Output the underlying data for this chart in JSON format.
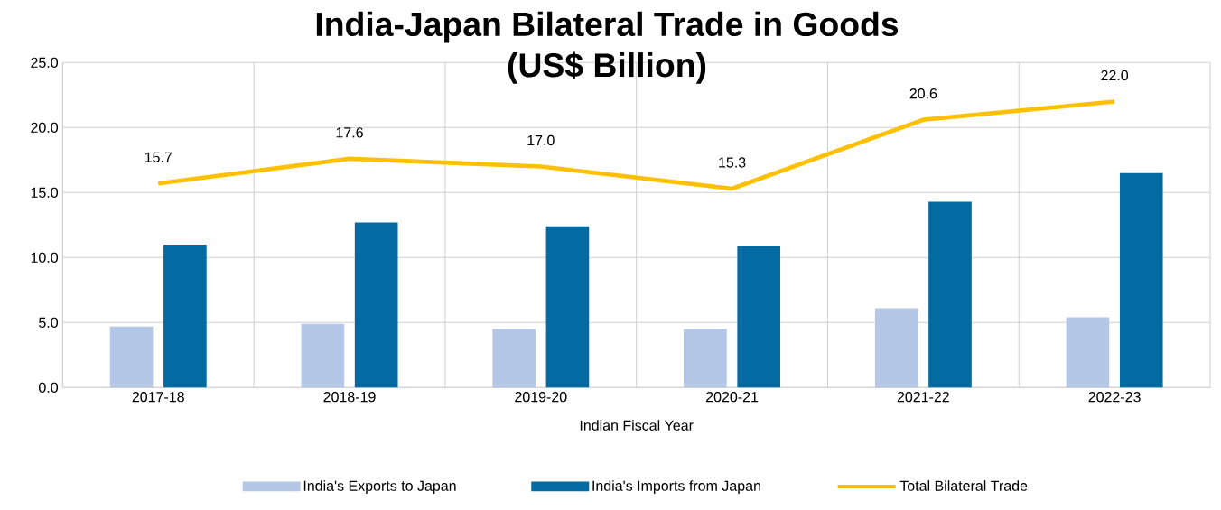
{
  "chart_data": {
    "type": "bar",
    "title": "India-Japan Bilateral Trade in Goods",
    "subtitle": "(US$ Billion)",
    "xlabel": "Indian Fiscal Year",
    "categories": [
      "2017-18",
      "2018-19",
      "2019-20",
      "2020-21",
      "2021-22",
      "2022-23"
    ],
    "series": [
      {
        "name": "India's Exports to Japan",
        "color": "#b4c7e7",
        "values": [
          4.7,
          4.9,
          4.5,
          4.5,
          6.1,
          5.4
        ]
      },
      {
        "name": "India's Imports from Japan",
        "color": "#036ba2",
        "values": [
          11.0,
          12.7,
          12.4,
          10.9,
          14.3,
          16.5
        ]
      },
      {
        "name": "Total Bilateral Trade",
        "type": "line",
        "color": "#ffc000",
        "values": [
          15.7,
          17.6,
          17.0,
          15.3,
          20.6,
          22.0
        ],
        "value_labels": [
          "15.7",
          "17.6",
          "17.0",
          "15.3",
          "20.6",
          "22.0"
        ]
      }
    ],
    "ylim": [
      0,
      25
    ],
    "yticks": [
      {
        "value": 0,
        "label": "0.0"
      },
      {
        "value": 5,
        "label": "5.0"
      },
      {
        "value": 10,
        "label": "10.0"
      },
      {
        "value": 15,
        "label": "15.0"
      },
      {
        "value": 20,
        "label": "20.0"
      },
      {
        "value": 25,
        "label": "25.0"
      }
    ],
    "grid": true,
    "legend": "bottom",
    "marker": "none",
    "line_style": "solid"
  }
}
